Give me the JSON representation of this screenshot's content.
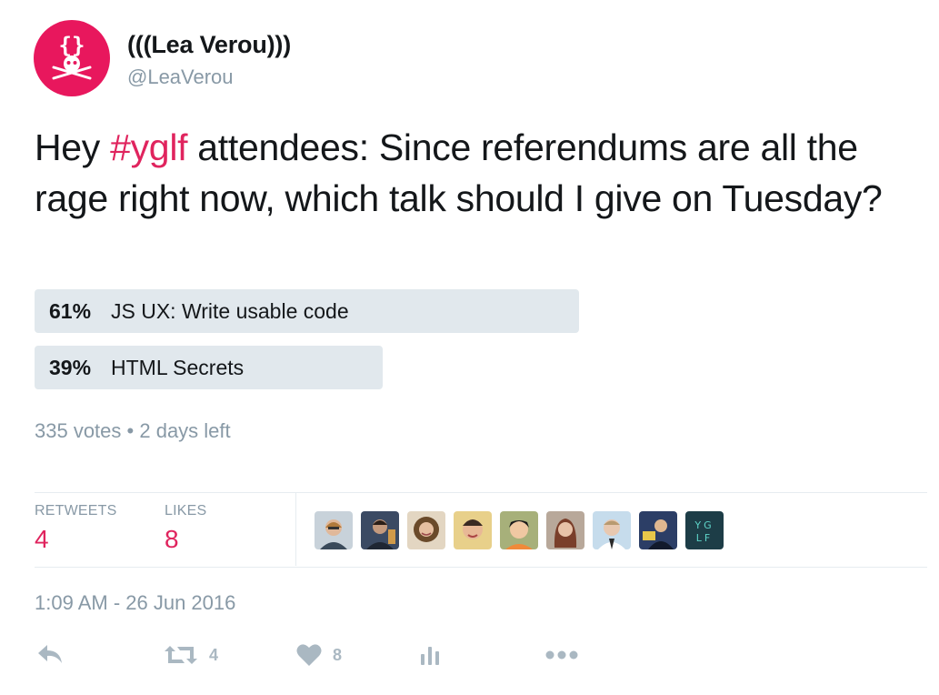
{
  "user": {
    "display_name": "(((Lea Verou)))",
    "handle": "@LeaVerou",
    "avatar_icon": "pirate-braces-icon",
    "avatar_color": "#e8175d"
  },
  "tweet": {
    "text_before": "Hey ",
    "hashtag": "#yglf",
    "text_after": " attendees: Since referendums are all the rage right now, which talk should I give on Tuesday?"
  },
  "poll": {
    "choices": [
      {
        "percent_label": "61%",
        "percent": 61,
        "label": "JS UX: Write usable code"
      },
      {
        "percent_label": "39%",
        "percent": 39,
        "label": "HTML Secrets"
      }
    ],
    "votes": "335 votes",
    "separator": "•",
    "time_left": "2 days left"
  },
  "stats": {
    "retweets_label": "RETWEETS",
    "retweets_count": "4",
    "likes_label": "LIKES",
    "likes_count": "8"
  },
  "likers": [
    {
      "name": "liker-avatar-1",
      "color": "#7a8a99"
    },
    {
      "name": "liker-avatar-2",
      "color": "#4a5568"
    },
    {
      "name": "liker-avatar-3",
      "color": "#8b6f4e"
    },
    {
      "name": "liker-avatar-4",
      "color": "#c9b27a"
    },
    {
      "name": "liker-avatar-5",
      "color": "#b8935a"
    },
    {
      "name": "liker-avatar-6",
      "color": "#9e7b6a"
    },
    {
      "name": "liker-avatar-7",
      "color": "#a9c4d8"
    },
    {
      "name": "liker-avatar-8",
      "color": "#2c3e66"
    },
    {
      "name": "liker-avatar-yglf",
      "color": "#1d3d47",
      "text": "YG LF"
    }
  ],
  "timestamp": "1:09 AM - 26 Jun 2016",
  "actions": {
    "reply_icon": "reply-icon",
    "retweet_icon": "retweet-icon",
    "retweet_count": "4",
    "like_icon": "heart-icon",
    "like_count": "8",
    "analytics_icon": "analytics-icon",
    "more_icon": "more-dots-icon"
  },
  "colors": {
    "accent": "#e0245e",
    "muted": "#8899a6",
    "poll_bar": "#e1e8ed",
    "action_icon": "#aab8c2"
  }
}
